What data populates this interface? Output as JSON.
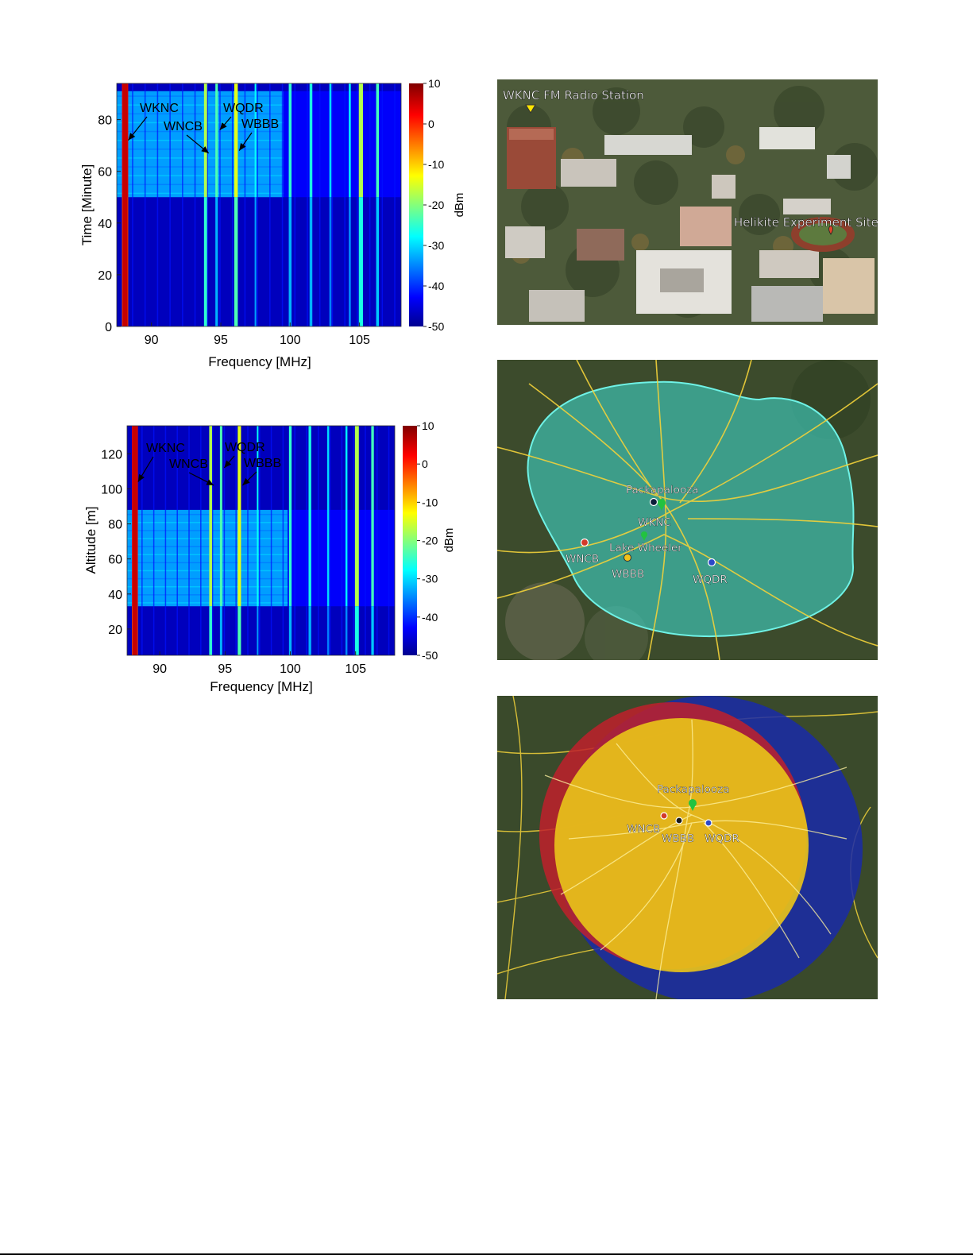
{
  "chart_data": [
    {
      "type": "heatmap",
      "xlabel": "Frequency [MHz]",
      "ylabel": "Time [Minute]",
      "colorbar_label": "dBm",
      "xlim": [
        87.5,
        108
      ],
      "ylim": [
        0,
        94
      ],
      "xticks": [
        90,
        95,
        100,
        105
      ],
      "yticks": [
        0,
        20,
        40,
        60,
        80
      ],
      "clim": [
        -50,
        10
      ],
      "colorbar_ticks": [
        10,
        0,
        -10,
        -20,
        -30,
        -40,
        -50
      ],
      "annotations": [
        {
          "text": "WKNC",
          "freq": 88.1,
          "value": 72
        },
        {
          "text": "WNCB",
          "freq": 93.9,
          "value": 67
        },
        {
          "text": "WQDR",
          "freq": 94.7,
          "value": 76
        },
        {
          "text": "WBBB",
          "freq": 96.1,
          "value": 68
        }
      ]
    },
    {
      "type": "heatmap",
      "xlabel": "Frequency [MHz]",
      "ylabel": "Altitude [m]",
      "colorbar_label": "dBm",
      "xlim": [
        87.5,
        108
      ],
      "ylim": [
        5,
        136
      ],
      "xticks": [
        90,
        95,
        100,
        105
      ],
      "yticks": [
        20,
        40,
        60,
        80,
        100,
        120
      ],
      "clim": [
        -50,
        10
      ],
      "colorbar_ticks": [
        10,
        0,
        -10,
        -20,
        -30,
        -40,
        -50
      ],
      "annotations": [
        {
          "text": "WKNC",
          "freq": 88.1,
          "value": 104
        },
        {
          "text": "WNCB",
          "freq": 93.9,
          "value": 102
        },
        {
          "text": "WQDR",
          "freq": 94.7,
          "value": 112
        },
        {
          "text": "WBBB",
          "freq": 96.1,
          "value": 102
        }
      ]
    }
  ],
  "photo": {
    "station_label": "WKNC FM Radio Station",
    "site_label": "Helikite Experiment Site"
  },
  "map1": {
    "labels": [
      "Packapalooza",
      "WKNC",
      "Lake Wheeler",
      "WNCB",
      "WBBB",
      "WQDR"
    ]
  },
  "map2": {
    "labels": [
      "Packapalooza",
      "WNCB",
      "WBBB",
      "WQDR"
    ]
  },
  "colors": {
    "coverage_cyan": "#3fd1c4",
    "coverage_red": "#c0202c",
    "coverage_blue": "#1a2aa8",
    "coverage_yellow": "#e8c21a",
    "road_yellow": "#f2d23a"
  }
}
